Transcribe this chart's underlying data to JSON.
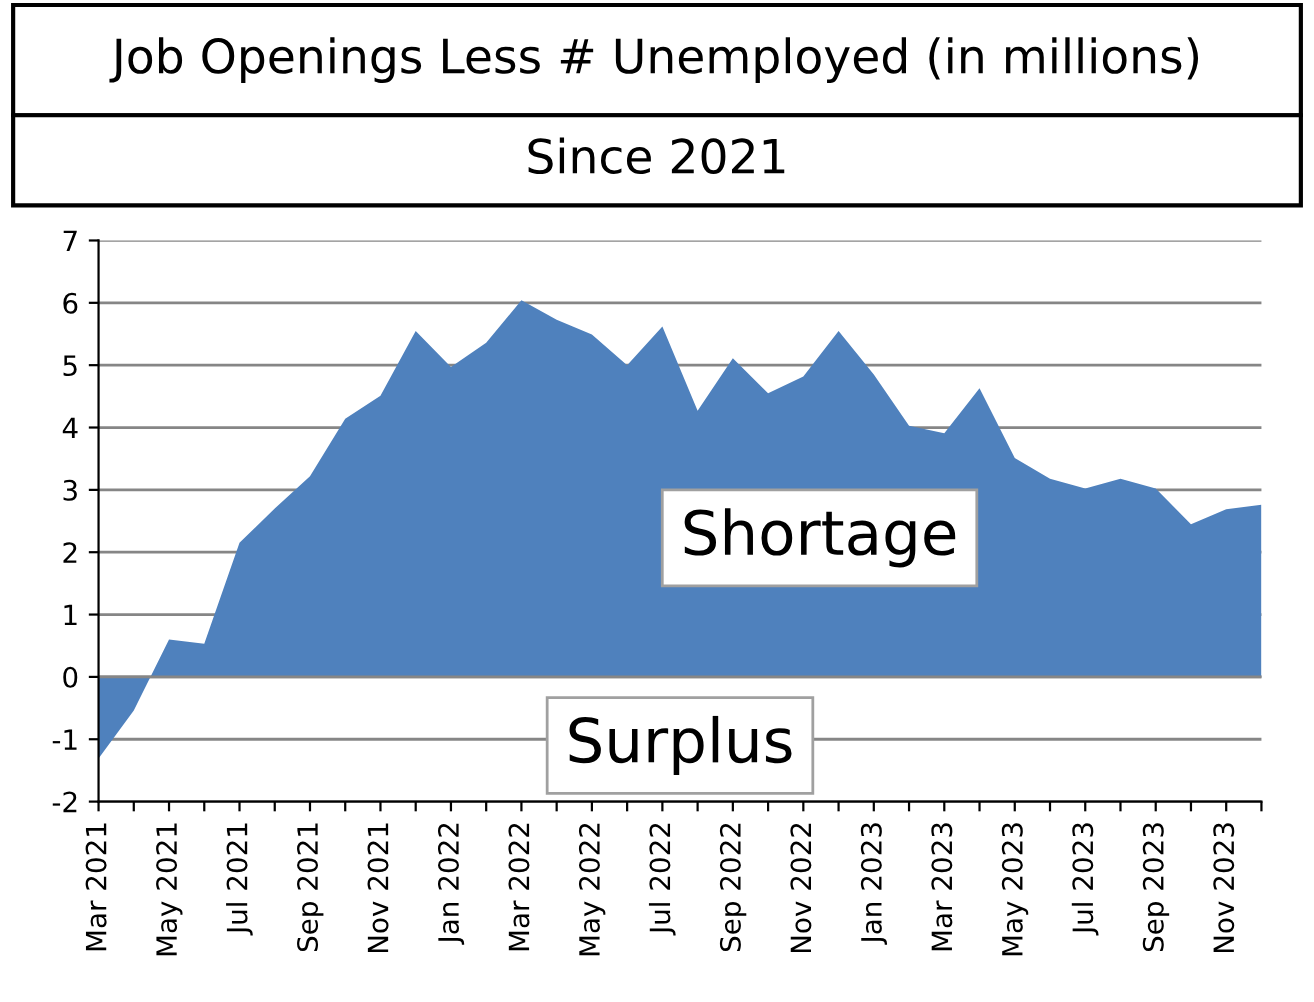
{
  "chart_data": {
    "type": "area",
    "title": "Job Openings Less # Unemployed (in millions)",
    "subtitle": "Since 2021",
    "categories": [
      "Mar 2021",
      null,
      "May 2021",
      null,
      "Jul 2021",
      null,
      "Sep 2021",
      null,
      "Nov 2021",
      null,
      "Jan 2022",
      null,
      "Mar 2022",
      null,
      "May 2022",
      null,
      "Jul 2022",
      null,
      "Sep 2022",
      null,
      "Nov 2022",
      null,
      "Jan 2023",
      null,
      "Mar 2023",
      null,
      "May 2023",
      null,
      "Jul 2023",
      null,
      "Sep 2023",
      null,
      "Nov 2023",
      null
    ],
    "values": [
      -1.31,
      -0.54,
      0.6,
      0.53,
      2.15,
      2.7,
      3.22,
      4.14,
      4.51,
      5.55,
      4.97,
      5.36,
      6.04,
      5.73,
      5.49,
      5.0,
      5.62,
      4.27,
      5.11,
      4.55,
      4.82,
      5.55,
      4.85,
      4.03,
      3.91,
      4.63,
      3.51,
      3.18,
      3.02,
      3.18,
      3.02,
      2.45,
      2.69,
      2.76
    ],
    "color": "#4f81bd",
    "ylim": [
      -2,
      7
    ],
    "yticks": [
      -2,
      -1,
      0,
      1,
      2,
      3,
      4,
      5,
      6,
      7
    ],
    "grid": "y",
    "legend": false,
    "annotations": [
      "Shortage",
      "Surplus"
    ]
  }
}
